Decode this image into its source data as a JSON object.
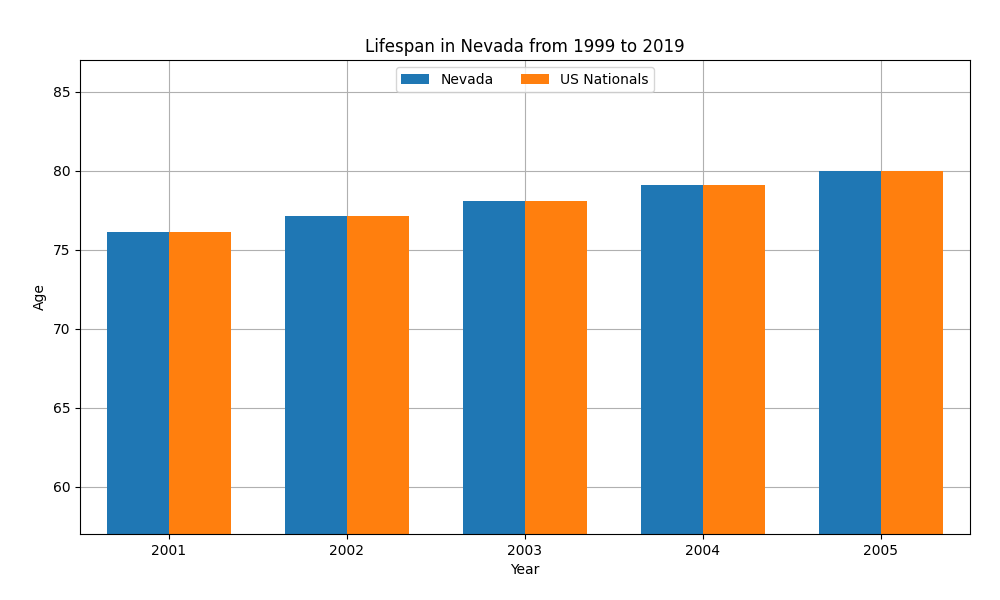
{
  "chart_data": {
    "type": "bar",
    "title": "Lifespan in Nevada from 1999 to 2019",
    "xlabel": "Year",
    "ylabel": "Age",
    "categories": [
      "2001",
      "2002",
      "2003",
      "2004",
      "2005"
    ],
    "series": [
      {
        "name": "Nevada",
        "values": [
          76.1,
          77.1,
          78.1,
          79.1,
          80.0
        ]
      },
      {
        "name": "US Nationals",
        "values": [
          76.1,
          77.1,
          78.1,
          79.1,
          80.0
        ]
      }
    ],
    "ylim": [
      57,
      87
    ],
    "yticks": [
      60,
      65,
      70,
      75,
      80,
      85
    ],
    "grid": true,
    "legend": "upper center"
  }
}
